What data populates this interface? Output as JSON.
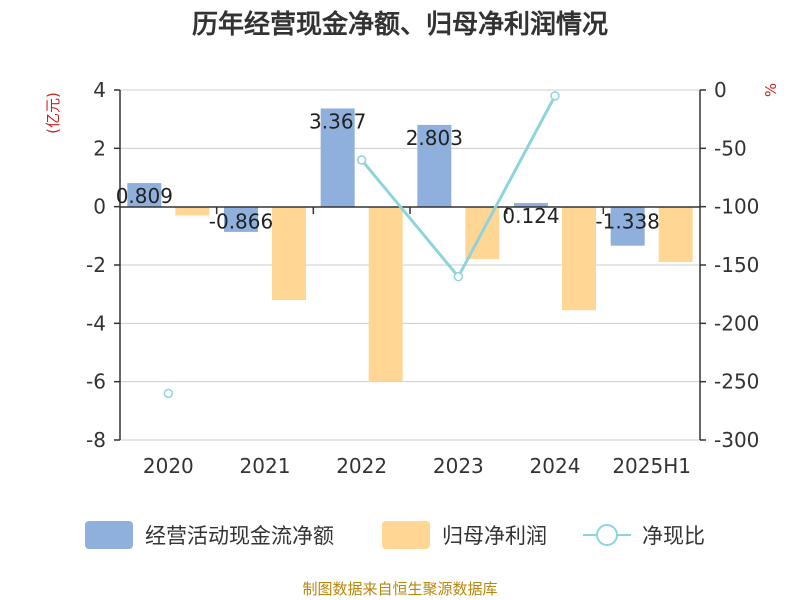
{
  "title": "历年经营现金净额、归母净利润情况",
  "source": "制图数据来自恒生聚源数据库",
  "colors": {
    "cash_flow": "#8FB0DD",
    "net_profit": "#FFD694",
    "ratio": "#8ED4DC",
    "unit_label": "#CC2222",
    "source_text": "#B8860B",
    "axis": "#333333",
    "grid": "#CCCCCC"
  },
  "chart_data": {
    "type": "bar",
    "categories": [
      "2020",
      "2021",
      "2022",
      "2023",
      "2024",
      "2025H1"
    ],
    "left_axis": {
      "unit": "(亿元)",
      "ylim": [
        -8,
        4
      ],
      "ticks": [
        "4",
        "2",
        "0",
        "-2",
        "-4",
        "-6",
        "-8"
      ],
      "tick_values": [
        4,
        2,
        0,
        -2,
        -4,
        -6,
        -8
      ]
    },
    "right_axis": {
      "unit": "%",
      "ylim": [
        -300,
        0
      ],
      "ticks": [
        "0",
        "-50",
        "-100",
        "-150",
        "-200",
        "-250",
        "-300"
      ],
      "tick_values": [
        0,
        -50,
        -100,
        -150,
        -200,
        -250,
        -300
      ]
    },
    "grid": true,
    "legend_position": "bottom",
    "series": [
      {
        "name": "经营活动现金流净额",
        "type": "bar",
        "axis": "left",
        "values": [
          0.809,
          -0.866,
          3.367,
          2.803,
          0.124,
          -1.338
        ],
        "labels": [
          "0.809",
          "-0.866",
          "3.367",
          "2.803",
          "0.124",
          "-1.338"
        ]
      },
      {
        "name": "归母净利润",
        "type": "bar",
        "axis": "left",
        "values": [
          -0.3,
          -3.2,
          -6.0,
          -1.8,
          -3.55,
          -1.9
        ]
      },
      {
        "name": "净现比",
        "type": "line",
        "axis": "right",
        "values": [
          -260,
          null,
          -60,
          -160,
          -5,
          null
        ]
      }
    ]
  }
}
